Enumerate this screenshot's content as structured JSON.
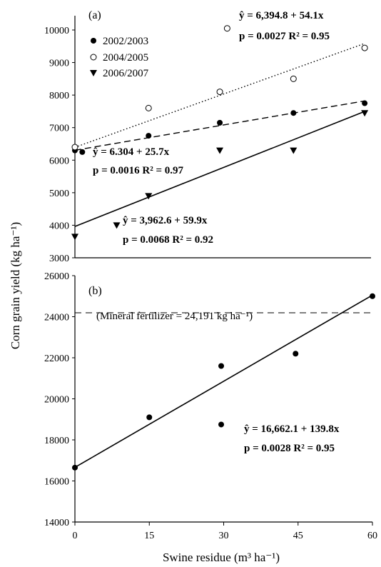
{
  "chart_data": [
    {
      "type": "scatter",
      "panel_label": "(a)",
      "x": [
        0,
        1.5,
        8.5,
        15,
        29.5,
        44.5,
        59
      ],
      "xlim": [
        0,
        60
      ],
      "ylim": [
        3000,
        10000
      ],
      "yticks": [
        "3000",
        "4000",
        "5000",
        "6000",
        "7000",
        "8000",
        "9000",
        "10000"
      ],
      "legend_position": "top-left",
      "series": [
        {
          "name": "2002/2003",
          "marker": "filled-circle",
          "line_style": "dashed",
          "points": [
            [
              0,
              6300
            ],
            [
              1.5,
              6250
            ],
            [
              15,
              6750
            ],
            [
              29.5,
              7150
            ],
            [
              44.5,
              7450
            ],
            [
              59,
              7750
            ]
          ],
          "fit": {
            "intercept": 6304,
            "slope": 25.7,
            "x_end": 59
          },
          "equation": {
            "y": "ŷ = 6.304 + 25.7x",
            "stats": "p = 0.0016 R² = 0.97"
          }
        },
        {
          "name": "2004/2005",
          "marker": "open-circle",
          "line_style": "dotted",
          "points": [
            [
              0,
              6400
            ],
            [
              15,
              7600
            ],
            [
              29.5,
              8100
            ],
            [
              31,
              10050
            ],
            [
              44.5,
              8500
            ],
            [
              59,
              9450
            ]
          ],
          "fit": {
            "intercept": 6394.8,
            "slope": 54.1,
            "x_end": 59
          },
          "equation": {
            "y": "ŷ = 6,394.8 + 54.1x",
            "stats": "p = 0.0027   R² = 0.95"
          }
        },
        {
          "name": "2006/2007",
          "marker": "filled-triangle-down",
          "line_style": "solid",
          "points": [
            [
              0,
              3650
            ],
            [
              8.5,
              4000
            ],
            [
              15,
              4900
            ],
            [
              29.5,
              6300
            ],
            [
              44.5,
              6300
            ],
            [
              59,
              7450
            ]
          ],
          "fit": {
            "intercept": 3962.6,
            "slope": 59.9,
            "x_end": 59
          },
          "equation": {
            "y": "ŷ = 3,962.6 + 59.9x",
            "stats": "p = 0.0068   R² = 0.92"
          }
        }
      ]
    },
    {
      "type": "scatter",
      "panel_label": "(b)",
      "xlim": [
        0,
        60
      ],
      "ylim": [
        14000,
        26000
      ],
      "xticks": [
        "0",
        "15",
        "30",
        "45",
        "60"
      ],
      "yticks": [
        "14000",
        "16000",
        "18000",
        "20000",
        "22000",
        "24000",
        "26000"
      ],
      "series": [
        {
          "marker": "filled-circle",
          "line_style": "solid",
          "points": [
            [
              0,
              16650
            ],
            [
              15,
              19100
            ],
            [
              29.5,
              21600
            ],
            [
              29.5,
              18750
            ],
            [
              44.5,
              22200
            ],
            [
              60,
              25000
            ]
          ],
          "fit": {
            "intercept": 16662.1,
            "slope": 139.8,
            "x_end": 60
          },
          "equation": {
            "y": "ŷ = 16,662.1 + 139.8x",
            "stats": "p = 0.0028     R² = 0.95"
          }
        }
      ],
      "reference_line": {
        "y": 24191,
        "style": "dashed",
        "label": "(Mineral fertilizer = 24,191 kg ha⁻¹)"
      }
    }
  ],
  "axes": {
    "ylabel": "Corn grain yield (kg ha⁻¹)",
    "xlabel": "Swine residue (m³ ha⁻¹)"
  }
}
